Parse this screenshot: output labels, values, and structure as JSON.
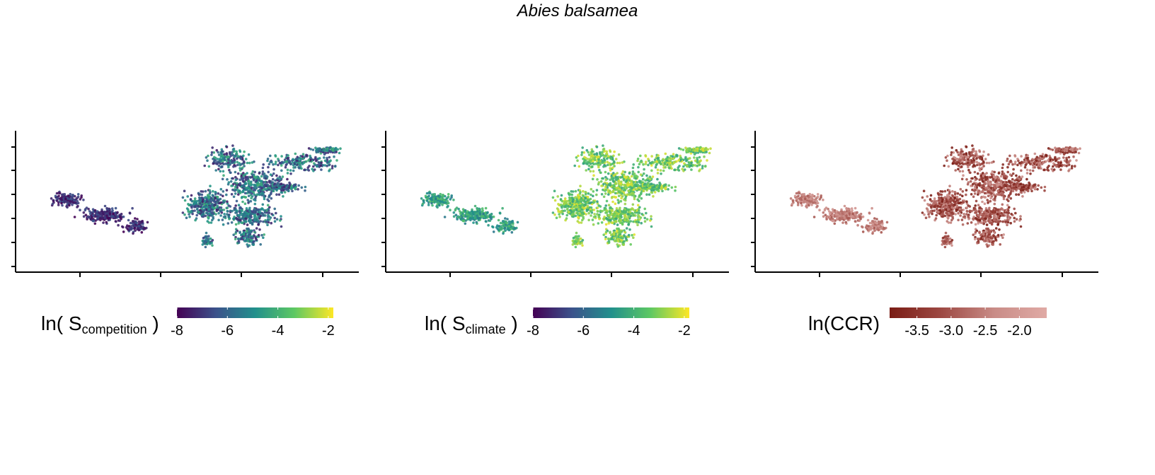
{
  "figure": {
    "title": "Abies balsamea"
  },
  "chart_data": [
    {
      "type": "scatter",
      "panel": "S_competition",
      "legend": {
        "title_prefix": "ln( S",
        "title_sub": "competition",
        "title_suffix": " )",
        "placement": "bottom",
        "palette": "viridis",
        "colors": [
          "#440154",
          "#3b528b",
          "#21908c",
          "#5dc863",
          "#fde725"
        ],
        "range": [
          -8.0,
          -1.8
        ],
        "ticks": [
          -8,
          -6,
          -4,
          -2
        ],
        "tick_labels": [
          "-8",
          "-6",
          "-4",
          "-2"
        ]
      },
      "value_summary": {
        "western_cluster": [
          -8.0,
          -6.3
        ],
        "eastern_cluster": [
          -7.5,
          -4.0
        ]
      },
      "xlabel": "",
      "ylabel": "",
      "grid": false
    },
    {
      "type": "scatter",
      "panel": "S_climate",
      "legend": {
        "title_prefix": "ln( S",
        "title_sub": "climate",
        "title_suffix": " )",
        "placement": "bottom",
        "palette": "viridis",
        "colors": [
          "#440154",
          "#3b528b",
          "#21908c",
          "#5dc863",
          "#fde725"
        ],
        "range": [
          -8.0,
          -1.8
        ],
        "ticks": [
          -8,
          -6,
          -4,
          -2
        ],
        "tick_labels": [
          "-8",
          "-6",
          "-4",
          "-2"
        ]
      },
      "value_summary": {
        "western_cluster": [
          -5.5,
          -3.5
        ],
        "eastern_cluster": [
          -4.5,
          -2.0
        ]
      },
      "xlabel": "",
      "ylabel": "",
      "grid": false
    },
    {
      "type": "scatter",
      "panel": "CCR",
      "legend": {
        "title_prefix": "ln(CCR)",
        "title_sub": "",
        "title_suffix": "",
        "placement": "bottom",
        "palette": "brown",
        "colors": [
          "#7a1c14",
          "#9e4a44",
          "#c98c87",
          "#e0aaa5"
        ],
        "range": [
          -3.9,
          -1.6
        ],
        "ticks": [
          -3.5,
          -3.0,
          -2.5,
          -2.0
        ],
        "tick_labels": [
          "-3.5",
          "-3.0",
          "-2.5",
          "-2.0"
        ]
      },
      "value_summary": {
        "western_cluster": [
          -3.0,
          -2.0
        ],
        "eastern_cluster": [
          -3.9,
          -2.2
        ]
      },
      "xlabel": "",
      "ylabel": "",
      "grid": false
    }
  ]
}
